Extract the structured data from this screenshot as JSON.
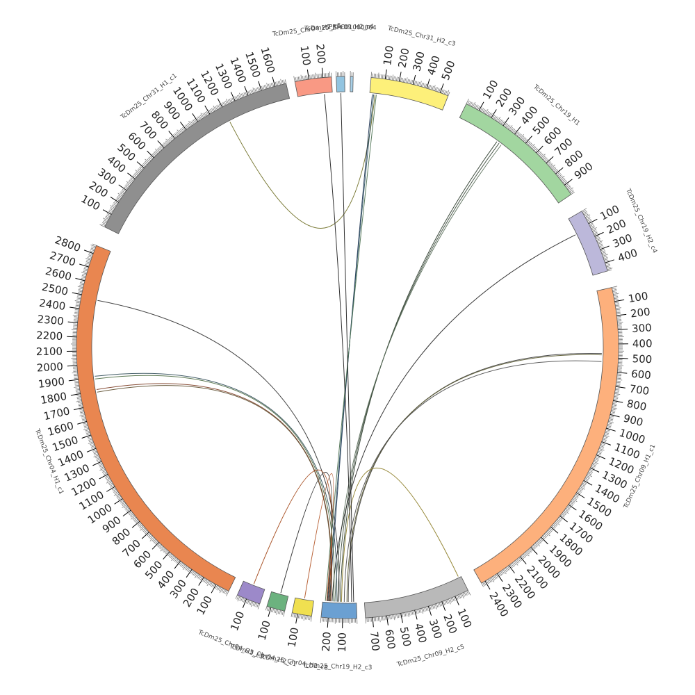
{
  "segments": [
    {
      "name": "TcDm25_Chr31_H2_c3",
      "length": 560,
      "color": "#fdf07a",
      "start_deg": 5.0,
      "end_deg": 21.8,
      "ticks": [
        100,
        200,
        300,
        400,
        500
      ]
    },
    {
      "name": "TcDm25_Chr19_H1",
      "length": 980,
      "color": "#a2d6a0",
      "start_deg": 26.0,
      "end_deg": 55.6,
      "ticks": [
        100,
        200,
        300,
        400,
        500,
        600,
        700,
        800,
        900
      ]
    },
    {
      "name": "TcDm25_Chr19_H2_c4",
      "length": 460,
      "color": "#bcb8da",
      "start_deg": 59.8,
      "end_deg": 73.6,
      "ticks": [
        100,
        200,
        300,
        400
      ]
    },
    {
      "name": "TcDm25_Chr09_H1_c1",
      "length": 2430,
      "color": "#fdb07c",
      "start_deg": 77.2,
      "end_deg": 150.4,
      "ticks": [
        100,
        200,
        300,
        400,
        500,
        600,
        700,
        800,
        900,
        1000,
        1100,
        1200,
        1300,
        1400,
        1500,
        1600,
        1700,
        1800,
        1900,
        2000,
        2100,
        2200,
        2300,
        2400
      ]
    },
    {
      "name": "TcDm25_Chr09_H2_c5",
      "length": 750,
      "color": "#b9b9b9",
      "start_deg": 153.6,
      "end_deg": 176.2,
      "ticks": [
        100,
        200,
        300,
        400,
        500,
        600,
        700
      ]
    },
    {
      "name": "TcDm25_Chr19_H2_c3",
      "length": 250,
      "color": "#6ba0d2",
      "start_deg": 178.0,
      "end_deg": 185.6,
      "ticks": [
        100,
        200
      ]
    },
    {
      "name": "TcDm25_Chr04_H2_c8",
      "length": 140,
      "color": "#f0e050",
      "start_deg": 187.6,
      "end_deg": 191.8,
      "ticks": [
        100
      ]
    },
    {
      "name": "TcDm25_Chr04_H2_c1",
      "length": 130,
      "color": "#6cb27f",
      "start_deg": 193.4,
      "end_deg": 197.3,
      "ticks": [
        100
      ]
    },
    {
      "name": "TcDm25_Chr04_H2_c3",
      "length": 170,
      "color": "#9c89c9",
      "start_deg": 198.9,
      "end_deg": 204.0,
      "ticks": [
        100
      ]
    },
    {
      "name": "TcDm25_Chr04_H1_c1",
      "length": 2860,
      "color": "#e98650",
      "start_deg": 206.0,
      "end_deg": 292.1,
      "ticks": [
        100,
        200,
        300,
        400,
        500,
        600,
        700,
        800,
        900,
        1000,
        1100,
        1200,
        1300,
        1400,
        1500,
        1600,
        1700,
        1800,
        1900,
        2000,
        2100,
        2200,
        2300,
        2400,
        2500,
        2600,
        2700,
        2800
      ]
    },
    {
      "name": "TcDm25_Chr31_H1_c1",
      "length": 1680,
      "color": "#8f8f8f",
      "start_deg": 296.4,
      "end_deg": 346.9,
      "ticks": [
        100,
        200,
        300,
        400,
        500,
        600,
        700,
        800,
        900,
        1000,
        1100,
        1200,
        1300,
        1400,
        1500,
        1600
      ]
    },
    {
      "name": "TcDm25_Chr04_H2_c5",
      "length": 260,
      "color": "#f99984",
      "start_deg": 348.8,
      "end_deg": 356.6,
      "ticks": [
        100,
        200
      ]
    },
    {
      "name": "TcDm25_Chr09_H2_c4",
      "length": 60,
      "color": "#92c4e0",
      "start_deg": 357.6,
      "end_deg": 359.4,
      "ticks": []
    },
    {
      "name": "PRFC01000064",
      "length": 20,
      "color": "#a8d0e8",
      "start_deg": 0.6,
      "end_deg": 1.2,
      "ticks": []
    }
  ],
  "links": [
    {
      "from": [
        "TcDm25_Chr19_H1",
        330
      ],
      "to": [
        "TcDm25_Chr19_H2_c3",
        120
      ],
      "color": "#2a3a2a"
    },
    {
      "from": [
        "TcDm25_Chr19_H1",
        350
      ],
      "to": [
        "TcDm25_Chr19_H2_c3",
        140
      ],
      "color": "#3a4a3a"
    },
    {
      "from": [
        "TcDm25_Chr19_H1",
        370
      ],
      "to": [
        "TcDm25_Chr19_H2_c3",
        160
      ],
      "color": "#5a6e5a"
    },
    {
      "from": [
        "TcDm25_Chr19_H2_c4",
        130
      ],
      "to": [
        "TcDm25_Chr19_H2_c3",
        180
      ],
      "color": "#222222"
    },
    {
      "from": [
        "TcDm25_Chr31_H2_c3",
        40
      ],
      "to": [
        "TcDm25_Chr31_H1_c1",
        1200
      ],
      "color": "#6b6b20"
    },
    {
      "from": [
        "TcDm25_Chr31_H2_c3",
        20
      ],
      "to": [
        "TcDm25_Chr19_H2_c3",
        200
      ],
      "color": "#1a3050"
    },
    {
      "from": [
        "TcDm25_Chr31_H2_c3",
        30
      ],
      "to": [
        "TcDm25_Chr19_H2_c3",
        210
      ],
      "color": "#2a5060"
    },
    {
      "from": [
        "TcDm25_Chr09_H1_c1",
        470
      ],
      "to": [
        "TcDm25_Chr19_H2_c3",
        60
      ],
      "color": "#3c3c3c"
    },
    {
      "from": [
        "TcDm25_Chr09_H1_c1",
        480
      ],
      "to": [
        "TcDm25_Chr19_H2_c3",
        70
      ],
      "color": "#5a5a30"
    },
    {
      "from": [
        "TcDm25_Chr09_H1_c1",
        530
      ],
      "to": [
        "TcDm25_Chr19_H2_c3",
        90
      ],
      "color": "#4a4a4a"
    },
    {
      "from": [
        "TcDm25_Chr09_H2_c5",
        20
      ],
      "to": [
        "TcDm25_Chr19_H2_c3",
        110
      ],
      "color": "#8a7a20"
    },
    {
      "from": [
        "TcDm25_Chr04_H1_c1",
        2480
      ],
      "to": [
        "TcDm25_Chr19_H2_c3",
        130
      ],
      "color": "#303030"
    },
    {
      "from": [
        "TcDm25_Chr04_H1_c1",
        1910
      ],
      "to": [
        "TcDm25_Chr19_H2_c3",
        150
      ],
      "color": "#2d4a55"
    },
    {
      "from": [
        "TcDm25_Chr04_H1_c1",
        1890
      ],
      "to": [
        "TcDm25_Chr19_H2_c3",
        170
      ],
      "color": "#4a6a40"
    },
    {
      "from": [
        "TcDm25_Chr04_H1_c1",
        1810
      ],
      "to": [
        "TcDm25_Chr19_H2_c3",
        190
      ],
      "color": "#7a3a20"
    },
    {
      "from": [
        "TcDm25_Chr04_H1_c1",
        1790
      ],
      "to": [
        "TcDm25_Chr19_H2_c3",
        195
      ],
      "color": "#5a4a2a"
    },
    {
      "from": [
        "TcDm25_Chr04_H2_c3",
        90
      ],
      "to": [
        "TcDm25_Chr19_H2_c3",
        205
      ],
      "color": "#a04010"
    },
    {
      "from": [
        "TcDm25_Chr04_H2_c1",
        60
      ],
      "to": [
        "TcDm25_Chr19_H2_c3",
        215
      ],
      "color": "#222222"
    },
    {
      "from": [
        "TcDm25_Chr04_H2_c8",
        70
      ],
      "to": [
        "TcDm25_Chr19_H2_c3",
        220
      ],
      "color": "#b05020"
    },
    {
      "from": [
        "TcDm25_Chr19_H2_c3",
        230
      ],
      "to": [
        "TcDm25_Chr31_H2_c3",
        50
      ],
      "color": "#4a7050"
    },
    {
      "from": [
        "TcDm25_Chr19_H2_c3",
        20
      ],
      "to": [
        "TcDm25_Chr09_H2_c4",
        30
      ],
      "color": "#1a1a1a"
    },
    {
      "from": [
        "TcDm25_Chr19_H2_c3",
        35
      ],
      "to": [
        "TcDm25_Chr04_H2_c5",
        200
      ],
      "color": "#1a1a1a"
    }
  ],
  "colors": {
    "tick": "#000000",
    "minor_tick": "#777777",
    "label": "#444444"
  }
}
